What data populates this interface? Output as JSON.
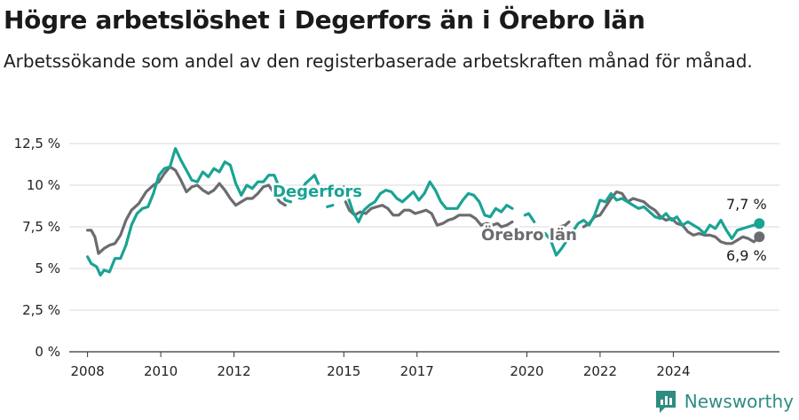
{
  "title": "Högre arbetslöshet i Degerfors än i Örebro län",
  "subtitle": "Arbetssökande som andel av den registerbaserade arbetskraften månad för månad.",
  "brand": "Newsworthy",
  "colors": {
    "degerfors": "#1aa394",
    "orebro": "#6b6b70",
    "grid": "#d9d9d9",
    "axis": "#333333",
    "brand": "#2e8c83"
  },
  "chart_data": {
    "type": "line",
    "title": "Högre arbetslöshet i Degerfors än i Örebro län",
    "xlabel": "",
    "ylabel": "",
    "ylim": [
      0,
      12.5
    ],
    "xlim": [
      2007.5,
      2025.6
    ],
    "y_ticks": [
      0,
      2.5,
      5,
      7.5,
      10,
      12.5
    ],
    "y_tick_labels": [
      "0 %",
      "2,5 %",
      "5 %",
      "7,5 %",
      "10 %",
      "12,5 %"
    ],
    "x_ticks": [
      2008,
      2010,
      2012,
      2015,
      2017,
      2020,
      2022,
      2024
    ],
    "x_tick_labels": [
      "2008",
      "2010",
      "2012",
      "2015",
      "2017",
      "2020",
      "2022",
      "2024"
    ],
    "grid": "horizontal",
    "legend": "inline labels",
    "series": [
      {
        "name": "Degerfors",
        "label": "Degerfors",
        "end_label": "7,7 %",
        "segments": [
          [
            [
              2008.0,
              5.7
            ],
            [
              2008.1,
              5.3
            ],
            [
              2008.25,
              5.1
            ],
            [
              2008.35,
              4.6
            ],
            [
              2008.45,
              4.9
            ],
            [
              2008.6,
              4.8
            ],
            [
              2008.75,
              5.6
            ],
            [
              2008.9,
              5.6
            ],
            [
              2009.05,
              6.4
            ],
            [
              2009.2,
              7.6
            ],
            [
              2009.35,
              8.3
            ],
            [
              2009.5,
              8.6
            ],
            [
              2009.65,
              8.7
            ],
            [
              2009.8,
              9.5
            ],
            [
              2009.95,
              10.6
            ],
            [
              2010.1,
              11.0
            ],
            [
              2010.25,
              11.1
            ],
            [
              2010.4,
              12.2
            ],
            [
              2010.55,
              11.5
            ],
            [
              2010.7,
              10.9
            ],
            [
              2010.85,
              10.3
            ],
            [
              2011.0,
              10.2
            ],
            [
              2011.15,
              10.8
            ],
            [
              2011.3,
              10.5
            ],
            [
              2011.45,
              11.0
            ],
            [
              2011.6,
              10.8
            ],
            [
              2011.75,
              11.4
            ],
            [
              2011.9,
              11.2
            ],
            [
              2012.05,
              10.1
            ],
            [
              2012.2,
              9.4
            ],
            [
              2012.35,
              10.0
            ],
            [
              2012.5,
              9.8
            ],
            [
              2012.65,
              10.2
            ],
            [
              2012.8,
              10.2
            ],
            [
              2012.95,
              10.6
            ],
            [
              2013.1,
              10.6
            ],
            [
              2013.25,
              9.8
            ],
            [
              2013.4,
              9.1
            ],
            [
              2013.55,
              9.0
            ]
          ],
          [
            [
              2013.85,
              9.7
            ],
            [
              2013.95,
              10.1
            ],
            [
              2014.1,
              10.4
            ],
            [
              2014.2,
              10.6
            ],
            [
              2014.3,
              10.1
            ]
          ],
          [
            [
              2014.55,
              8.7
            ],
            [
              2014.7,
              8.8
            ]
          ],
          [
            [
              2015.0,
              9.9
            ],
            [
              2015.1,
              9.4
            ],
            [
              2015.25,
              8.4
            ],
            [
              2015.4,
              7.8
            ],
            [
              2015.55,
              8.5
            ],
            [
              2015.7,
              8.8
            ],
            [
              2015.85,
              9.0
            ],
            [
              2016.0,
              9.5
            ],
            [
              2016.15,
              9.7
            ],
            [
              2016.3,
              9.6
            ],
            [
              2016.45,
              9.2
            ],
            [
              2016.6,
              9.0
            ],
            [
              2016.75,
              9.3
            ],
            [
              2016.9,
              9.6
            ],
            [
              2017.05,
              9.1
            ],
            [
              2017.2,
              9.5
            ],
            [
              2017.35,
              10.2
            ],
            [
              2017.5,
              9.7
            ],
            [
              2017.65,
              9.0
            ],
            [
              2017.8,
              8.6
            ],
            [
              2017.95,
              8.6
            ],
            [
              2018.1,
              8.6
            ],
            [
              2018.25,
              9.1
            ],
            [
              2018.4,
              9.5
            ],
            [
              2018.55,
              9.4
            ],
            [
              2018.7,
              9.0
            ],
            [
              2018.85,
              8.2
            ],
            [
              2019.0,
              8.1
            ],
            [
              2019.15,
              8.6
            ],
            [
              2019.3,
              8.4
            ],
            [
              2019.45,
              8.8
            ],
            [
              2019.6,
              8.6
            ]
          ],
          [
            [
              2019.95,
              8.2
            ],
            [
              2020.05,
              8.3
            ],
            [
              2020.2,
              7.8
            ]
          ],
          [
            [
              2020.5,
              7.1
            ],
            [
              2020.65,
              6.7
            ],
            [
              2020.8,
              5.8
            ],
            [
              2020.95,
              6.2
            ],
            [
              2021.1,
              6.7
            ],
            [
              2021.25,
              7.2
            ],
            [
              2021.4,
              7.7
            ],
            [
              2021.55,
              7.9
            ],
            [
              2021.7,
              7.6
            ],
            [
              2021.85,
              8.2
            ],
            [
              2022.0,
              9.1
            ],
            [
              2022.15,
              9.0
            ],
            [
              2022.3,
              9.5
            ],
            [
              2022.45,
              9.1
            ],
            [
              2022.6,
              9.2
            ],
            [
              2022.75,
              9.0
            ],
            [
              2022.9,
              8.8
            ],
            [
              2023.05,
              8.6
            ],
            [
              2023.2,
              8.7
            ],
            [
              2023.35,
              8.4
            ],
            [
              2023.5,
              8.1
            ],
            [
              2023.65,
              8.0
            ],
            [
              2023.8,
              8.3
            ],
            [
              2023.95,
              7.9
            ],
            [
              2024.1,
              8.1
            ],
            [
              2024.25,
              7.6
            ],
            [
              2024.4,
              7.8
            ],
            [
              2024.55,
              7.6
            ],
            [
              2024.7,
              7.4
            ],
            [
              2024.85,
              7.1
            ],
            [
              2025.0,
              7.6
            ],
            [
              2025.15,
              7.4
            ],
            [
              2025.3,
              7.9
            ],
            [
              2025.45,
              7.3
            ],
            [
              2025.6,
              6.8
            ],
            [
              2025.75,
              7.3
            ],
            [
              2025.9,
              7.4
            ],
            [
              2026.05,
              7.5
            ],
            [
              2026.2,
              7.6
            ],
            [
              2026.35,
              7.7
            ]
          ]
        ]
      },
      {
        "name": "Örebro län",
        "label": "Örebro län",
        "end_label": "6,9 %",
        "segments": [
          [
            [
              2008.0,
              7.3
            ],
            [
              2008.1,
              7.3
            ],
            [
              2008.2,
              6.9
            ],
            [
              2008.3,
              5.9
            ],
            [
              2008.45,
              6.2
            ],
            [
              2008.6,
              6.4
            ],
            [
              2008.75,
              6.5
            ],
            [
              2008.9,
              7.0
            ],
            [
              2009.05,
              7.9
            ],
            [
              2009.2,
              8.5
            ],
            [
              2009.4,
              8.9
            ],
            [
              2009.6,
              9.6
            ],
            [
              2009.8,
              10.0
            ],
            [
              2009.95,
              10.2
            ],
            [
              2010.1,
              10.7
            ],
            [
              2010.25,
              11.1
            ],
            [
              2010.4,
              10.9
            ],
            [
              2010.55,
              10.3
            ],
            [
              2010.7,
              9.6
            ],
            [
              2010.85,
              9.9
            ],
            [
              2011.0,
              10.0
            ],
            [
              2011.15,
              9.7
            ],
            [
              2011.3,
              9.5
            ],
            [
              2011.45,
              9.7
            ],
            [
              2011.6,
              10.1
            ],
            [
              2011.75,
              9.7
            ],
            [
              2011.9,
              9.2
            ],
            [
              2012.05,
              8.8
            ],
            [
              2012.2,
              9.0
            ],
            [
              2012.35,
              9.2
            ],
            [
              2012.5,
              9.2
            ],
            [
              2012.65,
              9.5
            ],
            [
              2012.8,
              9.9
            ],
            [
              2012.95,
              10.0
            ],
            [
              2013.1,
              9.5
            ],
            [
              2013.25,
              9.0
            ],
            [
              2013.4,
              8.8
            ]
          ],
          [
            [
              2015.05,
              9.0
            ],
            [
              2015.15,
              8.5
            ],
            [
              2015.3,
              8.2
            ],
            [
              2015.45,
              8.4
            ],
            [
              2015.6,
              8.3
            ],
            [
              2015.75,
              8.6
            ],
            [
              2015.9,
              8.7
            ],
            [
              2016.05,
              8.8
            ],
            [
              2016.2,
              8.6
            ],
            [
              2016.35,
              8.2
            ],
            [
              2016.5,
              8.2
            ],
            [
              2016.65,
              8.5
            ],
            [
              2016.8,
              8.5
            ],
            [
              2016.95,
              8.3
            ],
            [
              2017.1,
              8.4
            ],
            [
              2017.25,
              8.5
            ],
            [
              2017.4,
              8.3
            ],
            [
              2017.55,
              7.6
            ],
            [
              2017.7,
              7.7
            ],
            [
              2017.85,
              7.9
            ],
            [
              2018.0,
              8.0
            ],
            [
              2018.15,
              8.2
            ],
            [
              2018.3,
              8.2
            ],
            [
              2018.45,
              8.2
            ],
            [
              2018.6,
              8.0
            ],
            [
              2018.75,
              7.6
            ],
            [
              2018.9,
              7.7
            ],
            [
              2019.05,
              7.6
            ],
            [
              2019.2,
              7.7
            ],
            [
              2019.3,
              7.5
            ],
            [
              2019.45,
              7.6
            ],
            [
              2019.6,
              7.8
            ]
          ],
          [
            [
              2020.9,
              7.5
            ],
            [
              2021.05,
              7.6
            ],
            [
              2021.15,
              7.8
            ]
          ],
          [
            [
              2021.55,
              7.5
            ],
            [
              2021.7,
              7.7
            ],
            [
              2021.85,
              8.1
            ],
            [
              2022.0,
              8.2
            ],
            [
              2022.15,
              8.7
            ],
            [
              2022.3,
              9.2
            ],
            [
              2022.45,
              9.6
            ],
            [
              2022.6,
              9.5
            ],
            [
              2022.75,
              9.0
            ],
            [
              2022.9,
              9.2
            ],
            [
              2023.05,
              9.1
            ],
            [
              2023.2,
              9.0
            ],
            [
              2023.35,
              8.7
            ],
            [
              2023.5,
              8.5
            ],
            [
              2023.65,
              8.1
            ],
            [
              2023.8,
              7.9
            ],
            [
              2023.95,
              8.0
            ],
            [
              2024.1,
              7.7
            ],
            [
              2024.25,
              7.6
            ],
            [
              2024.4,
              7.2
            ],
            [
              2024.55,
              7.0
            ],
            [
              2024.7,
              7.1
            ],
            [
              2024.85,
              7.0
            ],
            [
              2025.0,
              7.0
            ],
            [
              2025.15,
              6.9
            ],
            [
              2025.3,
              6.6
            ],
            [
              2025.45,
              6.5
            ],
            [
              2025.6,
              6.5
            ],
            [
              2025.75,
              6.7
            ],
            [
              2025.9,
              6.9
            ],
            [
              2026.05,
              6.8
            ],
            [
              2026.2,
              6.6
            ],
            [
              2026.35,
              6.9
            ]
          ]
        ]
      }
    ]
  }
}
